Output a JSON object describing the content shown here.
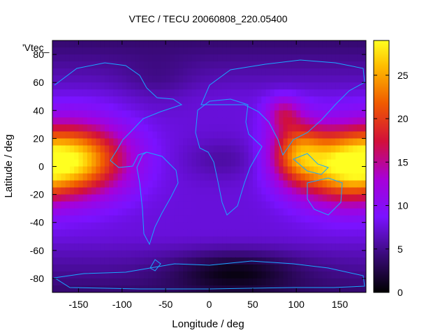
{
  "chart_data": {
    "type": "heatmap",
    "title": "VTEC / TECU 20060808_220.05400",
    "xlabel": "Longitude / deg",
    "ylabel": "Latitude / deg",
    "series_label": "'Vtec_",
    "xlim": [
      -180,
      180
    ],
    "ylim": [
      -90,
      90
    ],
    "x_ticks": [
      -150,
      -100,
      -50,
      0,
      50,
      100,
      150
    ],
    "y_ticks": [
      -80,
      -60,
      -40,
      -20,
      0,
      20,
      40,
      60,
      80
    ],
    "colorbar": {
      "range": [
        0,
        29
      ],
      "ticks": [
        0,
        5,
        10,
        15,
        20,
        25
      ],
      "palette": "black-purple-red-orange-yellow"
    },
    "grid": false,
    "features": [
      {
        "lon": -150,
        "lat": 5,
        "value": 25
      },
      {
        "lon": 150,
        "lat": 0,
        "value": 24
      },
      {
        "lon": 100,
        "lat": 10,
        "value": 20
      },
      {
        "lon": 85,
        "lat": 38,
        "value": 14
      },
      {
        "lon": 0,
        "lat": 0,
        "value": 6
      },
      {
        "lon": 30,
        "lat": -75,
        "value": 2
      }
    ]
  }
}
